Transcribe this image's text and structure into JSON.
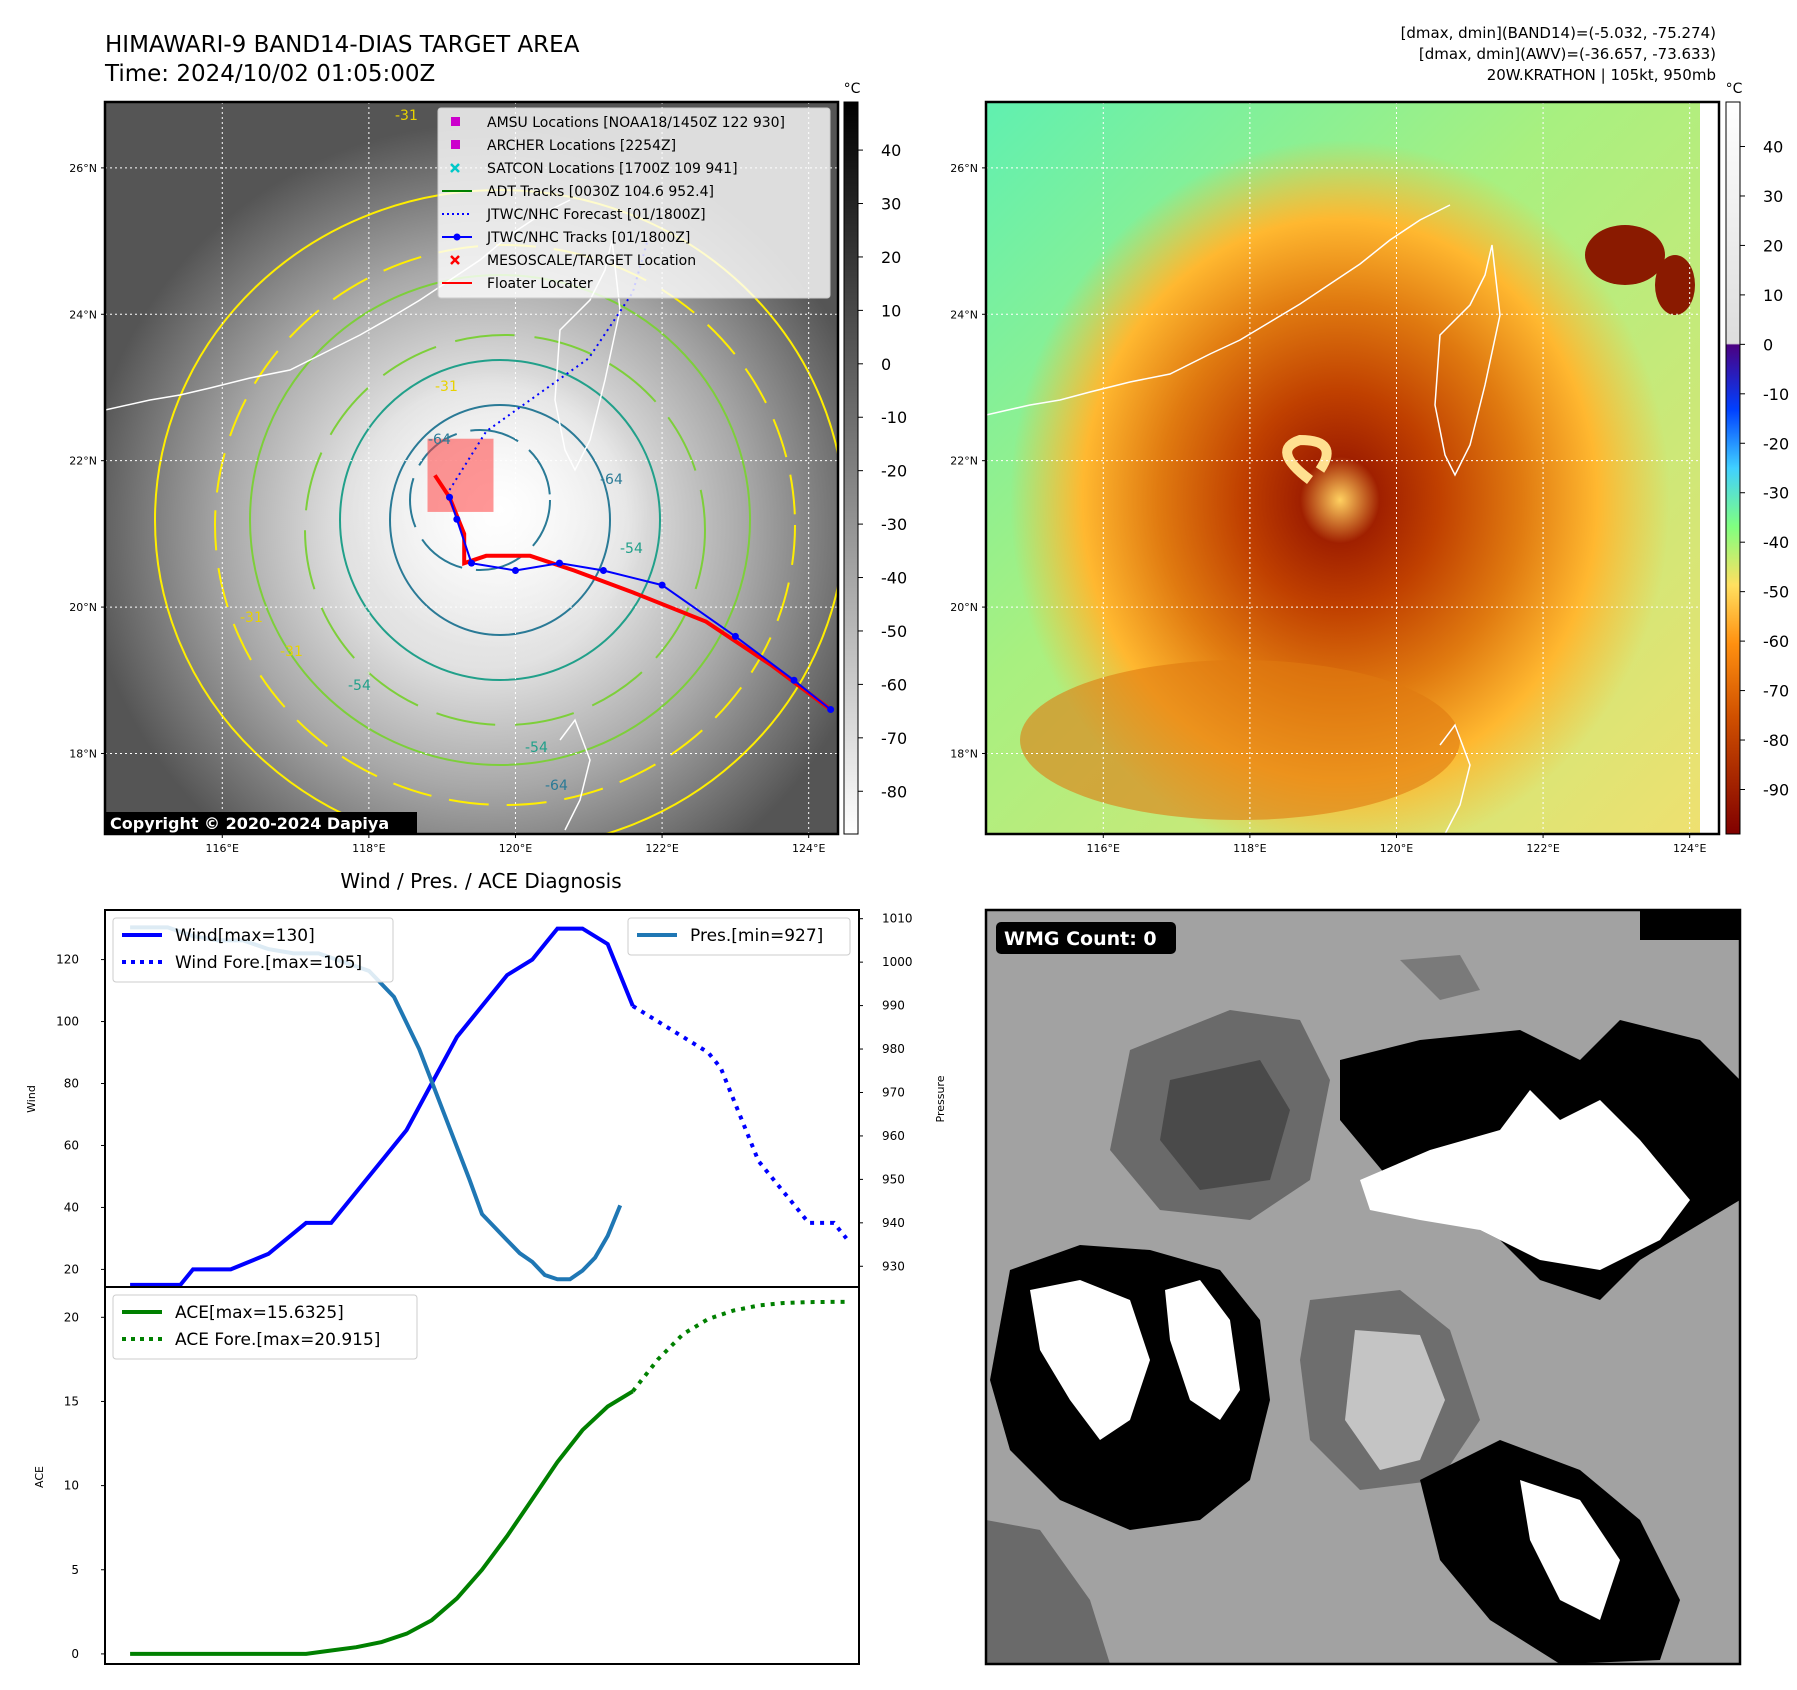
{
  "header": {
    "title_line1": "HIMAWARI-9 BAND14-DIAS TARGET AREA",
    "title_line2": "Time: 2024/10/02 01:05:00Z",
    "info_line1": "[dmax, dmin](BAND14)=(-5.032, -75.274)",
    "info_line2": "[dmax, dmin](AWV)=(-36.657, -73.633)",
    "info_line3": "20W.KRATHON | 105kt, 950mb"
  },
  "map_left": {
    "lat_labels": [
      "26°N",
      "24°N",
      "22°N",
      "20°N",
      "18°N"
    ],
    "lat_values": [
      26,
      24,
      22,
      20,
      18
    ],
    "lon_labels": [
      "116°E",
      "118°E",
      "120°E",
      "122°E",
      "124°E"
    ],
    "lon_values": [
      116,
      118,
      120,
      122,
      124
    ],
    "lat_range": [
      16.9,
      26.9
    ],
    "lon_range": [
      114.4,
      124.4
    ],
    "copyright": "Copyright © 2020-2024 Dapiya",
    "legend": [
      {
        "label": "AMSU Locations [NOAA18/1450Z 122 930]",
        "kind": "square",
        "color": "#cc00cc"
      },
      {
        "label": "ARCHER Locations [2254Z]",
        "kind": "square",
        "color": "#cc00cc"
      },
      {
        "label": "SATCON Locations [1700Z 109 941]",
        "kind": "x",
        "color": "#00c8c8"
      },
      {
        "label": "ADT Tracks [0030Z 104.6 952.4]",
        "kind": "line",
        "color": "#008000"
      },
      {
        "label": "JTWC/NHC Forecast [01/1800Z]",
        "kind": "dotted",
        "color": "#0000ff"
      },
      {
        "label": "JTWC/NHC Tracks [01/1800Z]",
        "kind": "linedot",
        "color": "#0000ff"
      },
      {
        "label": "MESOSCALE/TARGET Location",
        "kind": "x",
        "color": "#ff0000"
      },
      {
        "label": "Floater Locater",
        "kind": "line",
        "color": "#ff0000"
      }
    ],
    "contour_labels": [
      "-31",
      "-31",
      "-31",
      "-31",
      "-54",
      "-54",
      "-64",
      "-64",
      "-64",
      "-54"
    ],
    "colorbar_unit": "°C",
    "colorbar_ticks": [
      40,
      30,
      20,
      10,
      0,
      -10,
      -20,
      -30,
      -40,
      -50,
      -60,
      -70,
      -80
    ],
    "colorbar_range": [
      -88,
      49
    ],
    "track_jtwc": [
      [
        124.3,
        18.6
      ],
      [
        123.8,
        19.0
      ],
      [
        123.0,
        19.6
      ],
      [
        122.0,
        20.3
      ],
      [
        121.2,
        20.5
      ],
      [
        120.6,
        20.6
      ],
      [
        120.0,
        20.5
      ],
      [
        119.4,
        20.6
      ],
      [
        119.2,
        21.2
      ],
      [
        119.1,
        21.5
      ]
    ],
    "track_floater": [
      [
        124.3,
        18.6
      ],
      [
        123.5,
        19.2
      ],
      [
        122.6,
        19.8
      ],
      [
        121.6,
        20.2
      ],
      [
        120.8,
        20.5
      ],
      [
        120.2,
        20.7
      ],
      [
        119.6,
        20.7
      ],
      [
        119.3,
        20.6
      ],
      [
        119.3,
        21.0
      ],
      [
        119.1,
        21.5
      ],
      [
        118.9,
        21.8
      ]
    ],
    "track_forecast": [
      [
        119.1,
        21.6
      ],
      [
        119.6,
        22.4
      ],
      [
        120.3,
        22.9
      ],
      [
        121.0,
        23.4
      ],
      [
        121.6,
        24.3
      ],
      [
        121.8,
        25.0
      ]
    ],
    "target_box": [
      [
        118.8,
        21.3
      ],
      [
        119.7,
        22.3
      ]
    ]
  },
  "map_right": {
    "lat_labels": [
      "26°N",
      "24°N",
      "22°N",
      "20°N",
      "18°N"
    ],
    "lat_values": [
      26,
      24,
      22,
      20,
      18
    ],
    "lon_labels": [
      "116°E",
      "118°E",
      "120°E",
      "122°E",
      "124°E"
    ],
    "lon_values": [
      116,
      118,
      120,
      122,
      124
    ],
    "colorbar_unit": "°C",
    "colorbar_ticks": [
      40,
      30,
      20,
      10,
      0,
      -10,
      -20,
      -30,
      -40,
      -50,
      -60,
      -70,
      -80,
      -90
    ],
    "colorbar_range": [
      -99,
      49
    ]
  },
  "chart_data": [
    {
      "type": "line",
      "title": "Wind / Pres. / ACE Diagnosis",
      "ylabel": "Wind",
      "y2label": "Pressure",
      "ylim": [
        14,
        136
      ],
      "y2lim": [
        925,
        1012
      ],
      "xlim": [
        -2,
        58
      ],
      "yticks": [
        20,
        40,
        60,
        80,
        100,
        120
      ],
      "y2ticks": [
        930,
        940,
        950,
        960,
        970,
        980,
        990,
        1000,
        1010
      ],
      "series": [
        {
          "name": "Wind[max=130]",
          "color": "#0000ff",
          "style": "solid",
          "x": [
            0,
            4,
            5,
            8,
            11,
            14,
            16,
            18,
            20,
            22,
            24,
            26,
            28,
            30,
            32,
            33,
            34,
            36,
            38,
            40
          ],
          "values": [
            15,
            15,
            20,
            20,
            25,
            35,
            35,
            45,
            55,
            65,
            80,
            95,
            105,
            115,
            120,
            125,
            130,
            130,
            125,
            105
          ]
        },
        {
          "name": "Wind Fore.[max=105]",
          "color": "#0000ff",
          "style": "dotted",
          "x": [
            40,
            42,
            44,
            46,
            47,
            48,
            49,
            50,
            51,
            52,
            53,
            54,
            56,
            57
          ],
          "values": [
            105,
            100,
            95,
            90,
            85,
            75,
            65,
            55,
            50,
            45,
            40,
            35,
            35,
            30
          ]
        },
        {
          "name": "Pres.[min=927]",
          "color": "#1f77b4",
          "style": "solid",
          "axis": "right",
          "x": [
            0,
            3,
            5,
            7,
            9,
            11,
            13,
            15,
            17,
            19,
            21,
            23,
            25,
            27,
            28,
            30,
            31,
            32,
            33,
            34,
            35,
            36,
            37,
            38,
            39
          ],
          "values": [
            1008,
            1008,
            1006,
            1005,
            1005,
            1003,
            1002,
            1002,
            1000,
            998,
            992,
            980,
            965,
            950,
            942,
            936,
            933,
            931,
            928,
            927,
            927,
            929,
            932,
            937,
            944
          ]
        }
      ]
    },
    {
      "type": "line",
      "ylabel": "ACE",
      "ylim": [
        -0.6,
        21.8
      ],
      "xlim": [
        -2,
        58
      ],
      "yticks": [
        0,
        5,
        10,
        15,
        20
      ],
      "series": [
        {
          "name": "ACE[max=15.6325]",
          "color": "#008000",
          "style": "solid",
          "x": [
            0,
            5,
            10,
            14,
            16,
            18,
            20,
            22,
            24,
            26,
            28,
            30,
            32,
            34,
            36,
            38,
            40
          ],
          "values": [
            0,
            0,
            0,
            0,
            0.2,
            0.4,
            0.7,
            1.2,
            2.0,
            3.3,
            5.0,
            7.0,
            9.2,
            11.4,
            13.3,
            14.7,
            15.6
          ]
        },
        {
          "name": "ACE Fore.[max=20.915]",
          "color": "#008000",
          "style": "dotted",
          "x": [
            40,
            42,
            44,
            46,
            48,
            50,
            52,
            54,
            56,
            57
          ],
          "values": [
            15.6,
            17.5,
            19.0,
            19.9,
            20.4,
            20.7,
            20.85,
            20.9,
            20.915,
            20.915
          ]
        }
      ]
    }
  ],
  "wmg": {
    "label": "WMG Count: 0"
  }
}
